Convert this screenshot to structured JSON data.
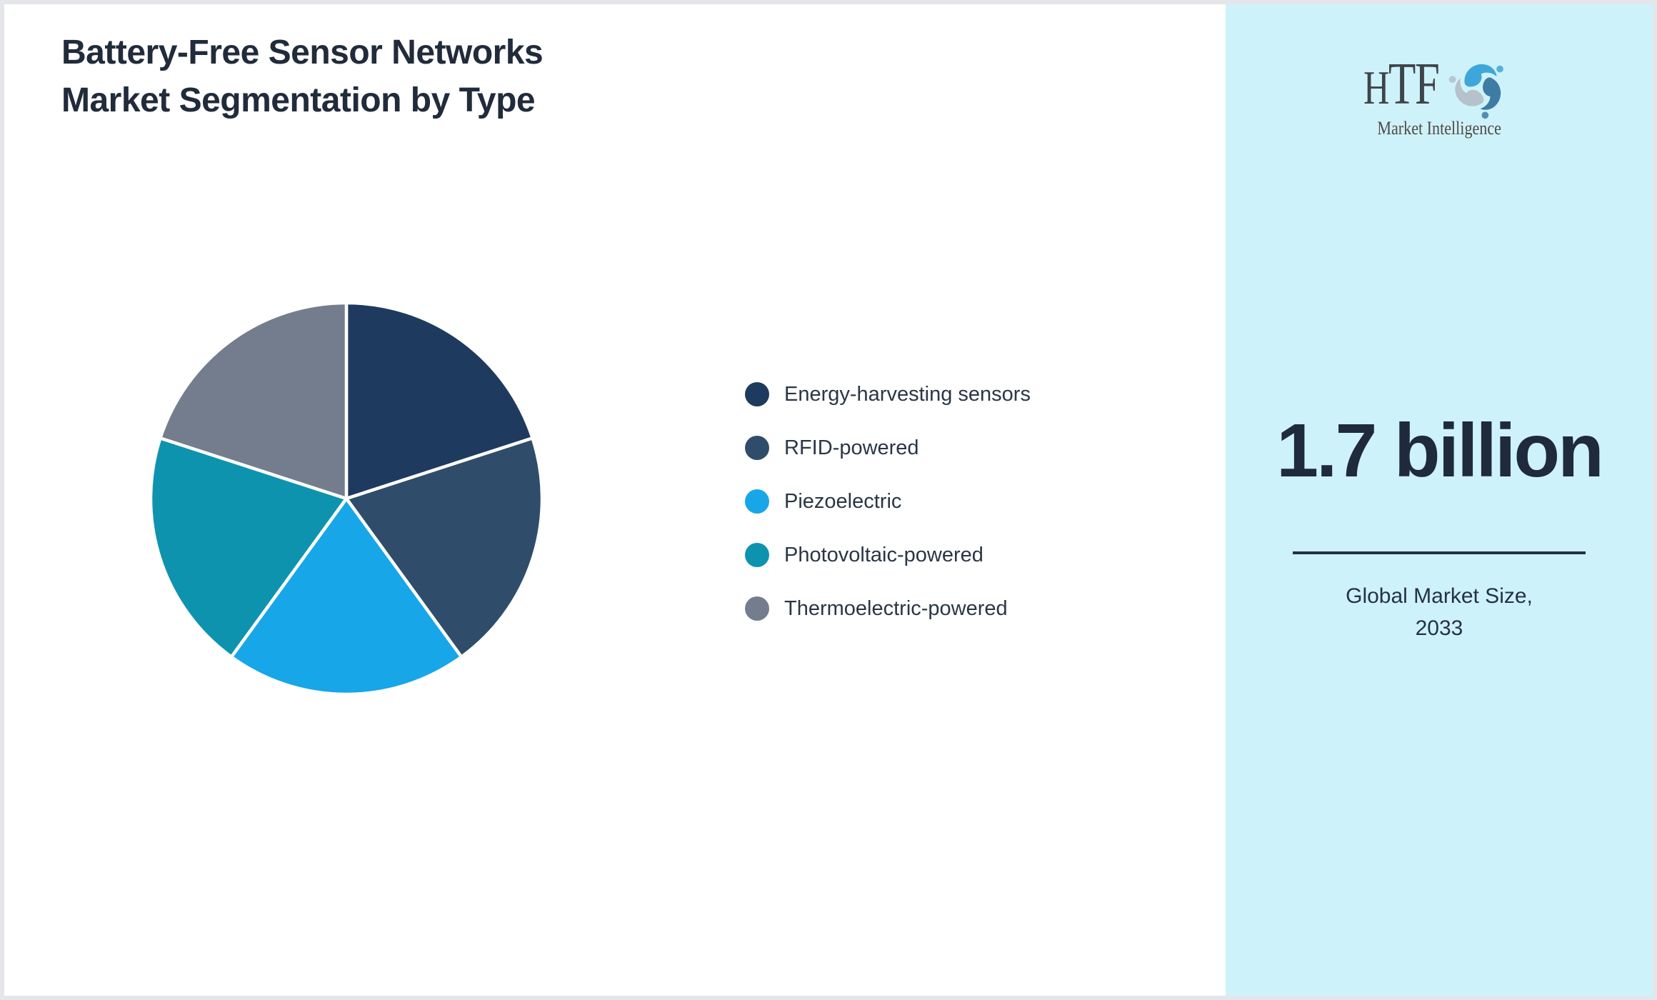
{
  "title": {
    "line1": "Battery-Free Sensor Networks",
    "line2": "Market Segmentation by Type"
  },
  "chart_data": {
    "type": "pie",
    "title": "Battery-Free Sensor Networks Market Segmentation by Type",
    "categories": [
      "Energy-harvesting sensors",
      "RFID-powered",
      "Piezoelectric",
      "Photovoltaic-powered",
      "Thermoelectric-powered"
    ],
    "values": [
      20,
      20,
      20,
      20,
      20
    ],
    "unit": "%",
    "colors": [
      "#1E3A5F",
      "#2F4D6B",
      "#17A6E8",
      "#0E93AF",
      "#737D8E"
    ],
    "start_angle_deg": 0,
    "direction": "clockwise",
    "slice_border_color": "#FFFFFF",
    "legend_position": "right",
    "data_labels_shown": false
  },
  "sidebar": {
    "logo": {
      "text": "HTF",
      "tagline": "Market Intelligence"
    },
    "stat_value": "1.7 billion",
    "caption_line1": "Global Market Size,",
    "caption_line2": "2033",
    "background": "#CEF2FA",
    "divider_color": "#233143"
  },
  "colors": {
    "page_border": "#E4E6EA",
    "title_text": "#212B3B",
    "legend_text": "#2B3645",
    "stat_text": "#1F2A3C",
    "logo_dolphin_top": "#3FA6DA",
    "logo_dolphin_right": "#3E7CA5",
    "logo_dolphin_left": "#B5C1CB"
  }
}
